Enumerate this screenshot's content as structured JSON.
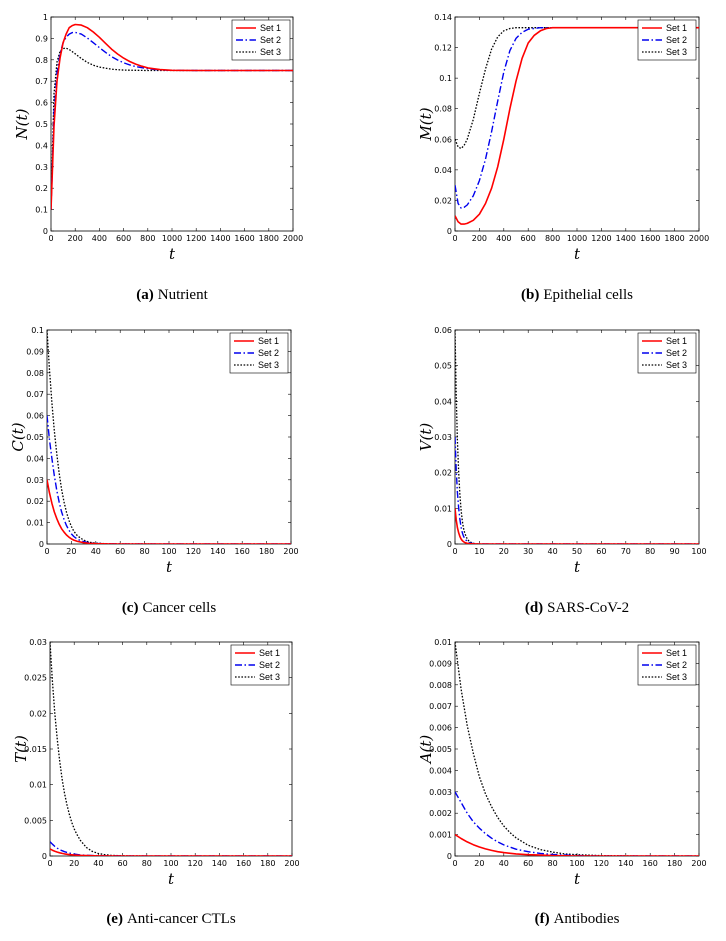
{
  "colors": {
    "set1": "#ff0000",
    "set2": "#0000ee",
    "set3": "#000000"
  },
  "chart_data": [
    {
      "type": "line",
      "caption_label": "(a)",
      "caption_text": "Nutrient",
      "ylabel": "N(t)",
      "xlabel": "t",
      "xlim": [
        0,
        2000
      ],
      "ylim": [
        0,
        1
      ],
      "xticks": [
        "0",
        "200",
        "400",
        "600",
        "800",
        "1000",
        "1200",
        "1400",
        "1600",
        "1800",
        "2000"
      ],
      "yticks": [
        "0",
        "0.1",
        "0.2",
        "0.3",
        "0.4",
        "0.5",
        "0.6",
        "0.7",
        "0.8",
        "0.9",
        "1"
      ],
      "legend_position": "top-right",
      "series": [
        {
          "name": "Set 1",
          "style": "solid",
          "x": [
            0,
            25,
            50,
            75,
            100,
            125,
            150,
            175,
            200,
            250,
            300,
            350,
            400,
            450,
            500,
            550,
            600,
            650,
            700,
            750,
            800,
            900,
            1000,
            1200,
            1400,
            1600,
            1800,
            2000
          ],
          "y": [
            0.1,
            0.49,
            0.7,
            0.81,
            0.88,
            0.92,
            0.95,
            0.96,
            0.965,
            0.962,
            0.95,
            0.93,
            0.905,
            0.877,
            0.85,
            0.827,
            0.808,
            0.792,
            0.78,
            0.77,
            0.762,
            0.754,
            0.751,
            0.75,
            0.75,
            0.75,
            0.75,
            0.75
          ]
        },
        {
          "name": "Set 2",
          "style": "dashdot",
          "x": [
            0,
            25,
            50,
            75,
            100,
            125,
            150,
            175,
            200,
            250,
            300,
            350,
            400,
            450,
            500,
            550,
            600,
            650,
            700,
            800,
            900,
            1000,
            1200,
            1400,
            1600,
            1800,
            2000
          ],
          "y": [
            0.1,
            0.55,
            0.74,
            0.83,
            0.88,
            0.905,
            0.92,
            0.927,
            0.928,
            0.92,
            0.902,
            0.88,
            0.857,
            0.835,
            0.815,
            0.799,
            0.786,
            0.776,
            0.768,
            0.758,
            0.753,
            0.751,
            0.75,
            0.75,
            0.75,
            0.75,
            0.75
          ]
        },
        {
          "name": "Set 3",
          "style": "dotted",
          "x": [
            0,
            25,
            50,
            75,
            100,
            125,
            150,
            200,
            250,
            300,
            350,
            400,
            500,
            600,
            700,
            800,
            1000,
            1200,
            1400,
            1600,
            1800,
            2000
          ],
          "y": [
            0.1,
            0.64,
            0.79,
            0.84,
            0.853,
            0.854,
            0.848,
            0.828,
            0.806,
            0.788,
            0.775,
            0.766,
            0.756,
            0.752,
            0.751,
            0.75,
            0.75,
            0.75,
            0.75,
            0.75,
            0.75,
            0.75
          ]
        }
      ]
    },
    {
      "type": "line",
      "caption_label": "(b)",
      "caption_text": "Epithelial cells",
      "ylabel": "M(t)",
      "xlabel": "t",
      "xlim": [
        0,
        2000
      ],
      "ylim": [
        0,
        0.14
      ],
      "xticks": [
        "0",
        "200",
        "400",
        "600",
        "800",
        "1000",
        "1200",
        "1400",
        "1600",
        "1800",
        "2000"
      ],
      "yticks": [
        "0",
        "0.02",
        "0.04",
        "0.06",
        "0.08",
        "0.1",
        "0.12",
        "0.14"
      ],
      "legend_position": "top-right",
      "series": [
        {
          "name": "Set 1",
          "style": "solid",
          "x": [
            0,
            25,
            50,
            75,
            100,
            150,
            200,
            250,
            300,
            350,
            400,
            450,
            500,
            550,
            600,
            650,
            700,
            750,
            800,
            900,
            1000,
            1200,
            1400,
            1600,
            1800,
            2000
          ],
          "y": [
            0.01,
            0.006,
            0.0045,
            0.0045,
            0.005,
            0.007,
            0.011,
            0.018,
            0.028,
            0.042,
            0.06,
            0.08,
            0.098,
            0.113,
            0.123,
            0.128,
            0.131,
            0.1325,
            0.133,
            0.133,
            0.133,
            0.133,
            0.133,
            0.133,
            0.133,
            0.133
          ]
        },
        {
          "name": "Set 2",
          "style": "dashdot",
          "x": [
            0,
            25,
            50,
            75,
            100,
            150,
            200,
            250,
            300,
            350,
            400,
            450,
            500,
            550,
            600,
            700,
            800,
            1000,
            1200,
            1400,
            1600,
            1800,
            2000
          ],
          "y": [
            0.03,
            0.018,
            0.015,
            0.0155,
            0.017,
            0.023,
            0.033,
            0.047,
            0.065,
            0.085,
            0.104,
            0.118,
            0.126,
            0.13,
            0.132,
            0.133,
            0.133,
            0.133,
            0.133,
            0.133,
            0.133,
            0.133,
            0.133
          ]
        },
        {
          "name": "Set 3",
          "style": "dotted",
          "x": [
            0,
            25,
            50,
            75,
            100,
            150,
            200,
            250,
            300,
            350,
            400,
            450,
            500,
            600,
            700,
            800,
            1000,
            1200,
            1400,
            1600,
            1800,
            2000
          ],
          "y": [
            0.06,
            0.055,
            0.054,
            0.056,
            0.06,
            0.073,
            0.09,
            0.106,
            0.119,
            0.127,
            0.131,
            0.1325,
            0.133,
            0.133,
            0.133,
            0.133,
            0.133,
            0.133,
            0.133,
            0.133,
            0.133,
            0.133
          ]
        }
      ]
    },
    {
      "type": "line",
      "caption_label": "(c)",
      "caption_text": "Cancer cells",
      "ylabel": "C(t)",
      "xlabel": "t",
      "xlim": [
        0,
        200
      ],
      "ylim": [
        0,
        0.1
      ],
      "xticks": [
        "0",
        "20",
        "40",
        "60",
        "80",
        "100",
        "120",
        "140",
        "160",
        "180",
        "200"
      ],
      "yticks": [
        "0",
        "0.01",
        "0.02",
        "0.03",
        "0.04",
        "0.05",
        "0.06",
        "0.07",
        "0.08",
        "0.09",
        "0.1"
      ],
      "legend_position": "top-right",
      "series": [
        {
          "name": "Set 1",
          "style": "solid",
          "x": [
            0,
            2,
            4,
            6,
            8,
            10,
            12,
            14,
            16,
            18,
            20,
            22,
            25,
            30,
            35,
            40,
            50,
            60,
            100,
            150,
            200
          ],
          "y": [
            0.03,
            0.024,
            0.019,
            0.015,
            0.0118,
            0.0092,
            0.0071,
            0.0055,
            0.0042,
            0.0032,
            0.0024,
            0.0018,
            0.0012,
            0.0006,
            0.0003,
            0.00015,
            5e-05,
            2e-05,
            0,
            0,
            0
          ]
        },
        {
          "name": "Set 2",
          "style": "dashdot",
          "x": [
            0,
            2,
            4,
            6,
            8,
            10,
            12,
            14,
            16,
            18,
            20,
            22,
            25,
            30,
            35,
            40,
            50,
            60,
            100,
            150,
            200
          ],
          "y": [
            0.06,
            0.049,
            0.04,
            0.032,
            0.025,
            0.0195,
            0.015,
            0.0114,
            0.0086,
            0.0064,
            0.0047,
            0.0035,
            0.0022,
            0.0011,
            0.0005,
            0.00025,
            8e-05,
            3e-05,
            0,
            0,
            0
          ]
        },
        {
          "name": "Set 3",
          "style": "dotted",
          "x": [
            0,
            2,
            4,
            6,
            8,
            10,
            12,
            14,
            16,
            18,
            20,
            22,
            25,
            30,
            35,
            40,
            50,
            60,
            100,
            150,
            200
          ],
          "y": [
            0.1,
            0.082,
            0.066,
            0.053,
            0.042,
            0.033,
            0.0255,
            0.0195,
            0.0148,
            0.011,
            0.0082,
            0.006,
            0.0038,
            0.0018,
            0.0008,
            0.0004,
            0.0001,
            4e-05,
            0,
            0,
            0
          ]
        }
      ]
    },
    {
      "type": "line",
      "caption_label": "(d)",
      "caption_text": "SARS-CoV-2",
      "ylabel": "V(t)",
      "xlabel": "t",
      "xlim": [
        0,
        100
      ],
      "ylim": [
        0,
        0.06
      ],
      "xticks": [
        "0",
        "10",
        "20",
        "30",
        "40",
        "50",
        "60",
        "70",
        "80",
        "90",
        "100"
      ],
      "yticks": [
        "0",
        "0.01",
        "0.02",
        "0.03",
        "0.04",
        "0.05",
        "0.06"
      ],
      "legend_position": "top-right",
      "series": [
        {
          "name": "Set 1",
          "style": "solid",
          "x": [
            0,
            0.5,
            1,
            1.5,
            2,
            2.5,
            3,
            3.5,
            4,
            5,
            6,
            8,
            10,
            20,
            50,
            100
          ],
          "y": [
            0.01,
            0.0068,
            0.0046,
            0.0031,
            0.0021,
            0.0014,
            0.00095,
            0.00064,
            0.00043,
            0.0002,
            9e-05,
            2e-05,
            0,
            0,
            0,
            0
          ]
        },
        {
          "name": "Set 2",
          "style": "dashdot",
          "x": [
            0,
            0.5,
            1,
            1.5,
            2,
            2.5,
            3,
            3.5,
            4,
            5,
            6,
            8,
            10,
            20,
            50,
            100
          ],
          "y": [
            0.03,
            0.021,
            0.0145,
            0.01,
            0.0069,
            0.0047,
            0.0032,
            0.0022,
            0.0015,
            0.0007,
            0.0003,
            6e-05,
            0,
            0,
            0,
            0
          ]
        },
        {
          "name": "Set 3",
          "style": "dotted",
          "x": [
            0,
            0.5,
            1,
            1.5,
            2,
            2.5,
            3,
            3.5,
            4,
            5,
            6,
            8,
            10,
            20,
            50,
            100
          ],
          "y": [
            0.06,
            0.042,
            0.029,
            0.02,
            0.0138,
            0.0095,
            0.0065,
            0.0044,
            0.003,
            0.0014,
            0.0006,
            0.00012,
            0,
            0,
            0,
            0
          ]
        }
      ]
    },
    {
      "type": "line",
      "caption_label": "(e)",
      "caption_text": "Anti-cancer CTLs",
      "ylabel": "T(t)",
      "xlabel": "t",
      "xlim": [
        0,
        200
      ],
      "ylim": [
        0,
        0.03
      ],
      "xticks": [
        "0",
        "20",
        "40",
        "60",
        "80",
        "100",
        "120",
        "140",
        "160",
        "180",
        "200"
      ],
      "yticks": [
        "0",
        "0.005",
        "0.01",
        "0.015",
        "0.02",
        "0.025",
        "0.03"
      ],
      "legend_position": "top-right",
      "series": [
        {
          "name": "Set 1",
          "style": "solid",
          "x": [
            0,
            2,
            4,
            6,
            8,
            10,
            12,
            15,
            20,
            25,
            30,
            40,
            60,
            100,
            150,
            200
          ],
          "y": [
            0.001,
            0.00082,
            0.00067,
            0.00055,
            0.00045,
            0.00037,
            0.0003,
            0.00022,
            0.00013,
            8e-05,
            5e-05,
            2e-05,
            0,
            0,
            0,
            0
          ]
        },
        {
          "name": "Set 2",
          "style": "dashdot",
          "x": [
            0,
            2,
            4,
            6,
            8,
            10,
            12,
            15,
            20,
            25,
            30,
            40,
            60,
            100,
            150,
            200
          ],
          "y": [
            0.002,
            0.00165,
            0.00135,
            0.0011,
            0.0009,
            0.00074,
            0.0006,
            0.00045,
            0.00027,
            0.00016,
            0.0001,
            4e-05,
            1e-05,
            0,
            0,
            0
          ]
        },
        {
          "name": "Set 3",
          "style": "dotted",
          "x": [
            0,
            2,
            4,
            6,
            8,
            10,
            12,
            14,
            16,
            18,
            20,
            22,
            25,
            30,
            35,
            40,
            45,
            50,
            60,
            80,
            100,
            150,
            200
          ],
          "y": [
            0.03,
            0.0245,
            0.02,
            0.0163,
            0.0133,
            0.0108,
            0.0088,
            0.0072,
            0.0058,
            0.0047,
            0.0038,
            0.0031,
            0.0022,
            0.0012,
            0.00065,
            0.00035,
            0.0002,
            0.0001,
            3e-05,
            0,
            0,
            0,
            0
          ]
        }
      ]
    },
    {
      "type": "line",
      "caption_label": "(f)",
      "caption_text": "Antibodies",
      "ylabel": "A(t)",
      "xlabel": "t",
      "xlim": [
        0,
        200
      ],
      "ylim": [
        0,
        0.01
      ],
      "xticks": [
        "0",
        "20",
        "40",
        "60",
        "80",
        "100",
        "120",
        "140",
        "160",
        "180",
        "200"
      ],
      "yticks": [
        "0",
        "0.001",
        "0.002",
        "0.003",
        "0.004",
        "0.005",
        "0.006",
        "0.007",
        "0.008",
        "0.009",
        "0.01"
      ],
      "legend_position": "top-right",
      "series": [
        {
          "name": "Set 1",
          "style": "solid",
          "x": [
            0,
            5,
            10,
            15,
            20,
            25,
            30,
            35,
            40,
            50,
            60,
            70,
            80,
            100,
            120,
            150,
            200
          ],
          "y": [
            0.001,
            0.00082,
            0.00066,
            0.00053,
            0.00042,
            0.00033,
            0.00026,
            0.0002,
            0.00016,
            0.0001,
            6e-05,
            4e-05,
            2e-05,
            0,
            0,
            0,
            0
          ]
        },
        {
          "name": "Set 2",
          "style": "dashdot",
          "x": [
            0,
            5,
            10,
            15,
            20,
            25,
            30,
            35,
            40,
            50,
            60,
            70,
            80,
            100,
            120,
            150,
            200
          ],
          "y": [
            0.003,
            0.0025,
            0.002,
            0.0016,
            0.0013,
            0.00104,
            0.00083,
            0.00066,
            0.00052,
            0.00032,
            0.0002,
            0.00012,
            7e-05,
            2e-05,
            0,
            0,
            0
          ]
        },
        {
          "name": "Set 3",
          "style": "dotted",
          "x": [
            0,
            5,
            10,
            15,
            20,
            25,
            30,
            35,
            40,
            45,
            50,
            60,
            70,
            80,
            90,
            100,
            120,
            150,
            200
          ],
          "y": [
            0.01,
            0.0078,
            0.0061,
            0.0048,
            0.0037,
            0.0029,
            0.0023,
            0.0018,
            0.0014,
            0.0011,
            0.00085,
            0.0005,
            0.0003,
            0.00018,
            0.0001,
            6e-05,
            2e-05,
            0,
            0
          ]
        }
      ]
    }
  ]
}
